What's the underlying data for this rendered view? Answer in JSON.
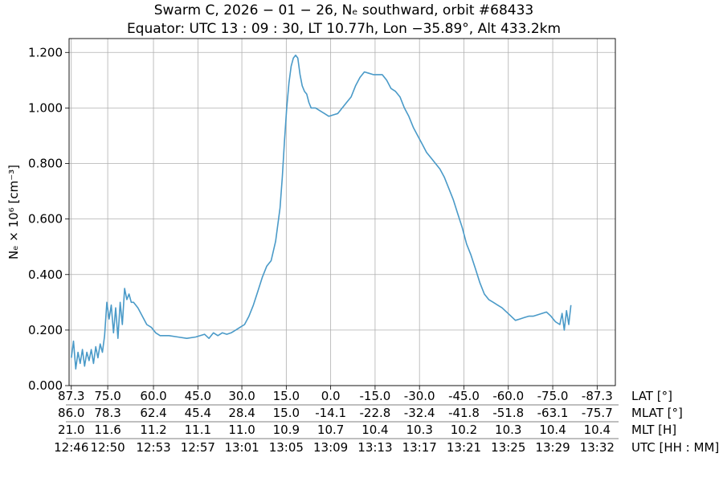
{
  "chart_data": {
    "type": "line",
    "title_lines": [
      "Swarm C,  2026 − 01 − 26,  Nₑ southward,  orbit #68433",
      "Equator:  UTC 13 : 09 : 30,  LT 10.77h,  Lon  −35.89°,  Alt 433.2km"
    ],
    "ylabel": "Nₑ × 10⁶ [cm⁻³]",
    "ylim": [
      0,
      1.25
    ],
    "xlim": [
      -0.05,
      12.25
    ],
    "yticks": [
      "0.000",
      "0.200",
      "0.400",
      "0.600",
      "0.800",
      "1.000",
      "1.200"
    ],
    "grid": true,
    "line_color": "#4a9ac8",
    "x_label_rows": [
      {
        "name": "LAT [°]",
        "labels": [
          "87.3",
          "75.0",
          "60.0",
          "45.0",
          "30.0",
          "15.0",
          "0.0",
          "-15.0",
          "-30.0",
          "-45.0",
          "-60.0",
          "-75.0",
          "-87.3"
        ]
      },
      {
        "name": "MLAT [°]",
        "labels": [
          "86.0",
          "78.3",
          "62.4",
          "45.4",
          "28.4",
          "15.0",
          "-14.1",
          "-22.8",
          "-32.4",
          "-41.8",
          "-51.8",
          "-63.1",
          "-75.7"
        ]
      },
      {
        "name": "MLT [H]",
        "labels": [
          "21.0",
          "11.6",
          "11.2",
          "11.1",
          "11.0",
          "10.9",
          "10.7",
          "10.4",
          "10.3",
          "10.2",
          "10.3",
          "10.4",
          "10.4"
        ]
      },
      {
        "name": "UTC [HH : MM]",
        "labels": [
          "12:46",
          "12:50",
          "12:53",
          "12:57",
          "13:01",
          "13:05",
          "13:09",
          "13:13",
          "13:17",
          "13:21",
          "13:25",
          "13:29",
          "13:32"
        ]
      }
    ],
    "x_tick_positions": [
      0,
      0.82,
      1.85,
      2.85,
      3.84,
      4.84,
      5.84,
      6.84,
      7.84,
      8.84,
      9.84,
      10.84,
      11.84
    ],
    "series": [
      {
        "points": [
          [
            0.0,
            0.1
          ],
          [
            0.05,
            0.16
          ],
          [
            0.1,
            0.06
          ],
          [
            0.15,
            0.12
          ],
          [
            0.2,
            0.08
          ],
          [
            0.25,
            0.13
          ],
          [
            0.3,
            0.07
          ],
          [
            0.35,
            0.12
          ],
          [
            0.4,
            0.09
          ],
          [
            0.45,
            0.13
          ],
          [
            0.5,
            0.08
          ],
          [
            0.55,
            0.14
          ],
          [
            0.6,
            0.1
          ],
          [
            0.65,
            0.15
          ],
          [
            0.7,
            0.12
          ],
          [
            0.75,
            0.18
          ],
          [
            0.8,
            0.3
          ],
          [
            0.85,
            0.24
          ],
          [
            0.9,
            0.29
          ],
          [
            0.95,
            0.19
          ],
          [
            1.0,
            0.28
          ],
          [
            1.05,
            0.17
          ],
          [
            1.1,
            0.3
          ],
          [
            1.15,
            0.22
          ],
          [
            1.2,
            0.35
          ],
          [
            1.25,
            0.31
          ],
          [
            1.3,
            0.33
          ],
          [
            1.35,
            0.3
          ],
          [
            1.4,
            0.3
          ],
          [
            1.5,
            0.28
          ],
          [
            1.6,
            0.25
          ],
          [
            1.7,
            0.22
          ],
          [
            1.8,
            0.21
          ],
          [
            1.9,
            0.19
          ],
          [
            2.0,
            0.18
          ],
          [
            2.2,
            0.18
          ],
          [
            2.4,
            0.175
          ],
          [
            2.6,
            0.17
          ],
          [
            2.8,
            0.175
          ],
          [
            3.0,
            0.185
          ],
          [
            3.1,
            0.17
          ],
          [
            3.2,
            0.19
          ],
          [
            3.3,
            0.18
          ],
          [
            3.4,
            0.19
          ],
          [
            3.5,
            0.185
          ],
          [
            3.6,
            0.19
          ],
          [
            3.7,
            0.2
          ],
          [
            3.8,
            0.21
          ],
          [
            3.9,
            0.22
          ],
          [
            4.0,
            0.25
          ],
          [
            4.1,
            0.29
          ],
          [
            4.2,
            0.34
          ],
          [
            4.3,
            0.39
          ],
          [
            4.4,
            0.43
          ],
          [
            4.5,
            0.45
          ],
          [
            4.6,
            0.52
          ],
          [
            4.7,
            0.64
          ],
          [
            4.75,
            0.75
          ],
          [
            4.8,
            0.88
          ],
          [
            4.85,
            1.0
          ],
          [
            4.9,
            1.09
          ],
          [
            4.95,
            1.15
          ],
          [
            5.0,
            1.18
          ],
          [
            5.05,
            1.19
          ],
          [
            5.1,
            1.18
          ],
          [
            5.15,
            1.12
          ],
          [
            5.2,
            1.08
          ],
          [
            5.25,
            1.06
          ],
          [
            5.3,
            1.05
          ],
          [
            5.35,
            1.02
          ],
          [
            5.4,
            1.0
          ],
          [
            5.5,
            1.0
          ],
          [
            5.6,
            0.99
          ],
          [
            5.7,
            0.98
          ],
          [
            5.8,
            0.97
          ],
          [
            5.9,
            0.975
          ],
          [
            6.0,
            0.98
          ],
          [
            6.1,
            1.0
          ],
          [
            6.2,
            1.02
          ],
          [
            6.3,
            1.04
          ],
          [
            6.4,
            1.08
          ],
          [
            6.5,
            1.11
          ],
          [
            6.6,
            1.13
          ],
          [
            6.7,
            1.125
          ],
          [
            6.8,
            1.12
          ],
          [
            6.9,
            1.12
          ],
          [
            7.0,
            1.12
          ],
          [
            7.1,
            1.1
          ],
          [
            7.2,
            1.07
          ],
          [
            7.3,
            1.06
          ],
          [
            7.4,
            1.04
          ],
          [
            7.5,
            1.0
          ],
          [
            7.6,
            0.97
          ],
          [
            7.7,
            0.93
          ],
          [
            7.8,
            0.9
          ],
          [
            7.9,
            0.87
          ],
          [
            8.0,
            0.84
          ],
          [
            8.1,
            0.82
          ],
          [
            8.2,
            0.8
          ],
          [
            8.3,
            0.78
          ],
          [
            8.4,
            0.75
          ],
          [
            8.5,
            0.71
          ],
          [
            8.6,
            0.67
          ],
          [
            8.7,
            0.62
          ],
          [
            8.8,
            0.57
          ],
          [
            8.9,
            0.51
          ],
          [
            9.0,
            0.47
          ],
          [
            9.1,
            0.42
          ],
          [
            9.2,
            0.37
          ],
          [
            9.3,
            0.33
          ],
          [
            9.4,
            0.31
          ],
          [
            9.5,
            0.3
          ],
          [
            9.6,
            0.29
          ],
          [
            9.7,
            0.28
          ],
          [
            9.8,
            0.265
          ],
          [
            9.9,
            0.25
          ],
          [
            10.0,
            0.235
          ],
          [
            10.1,
            0.24
          ],
          [
            10.2,
            0.245
          ],
          [
            10.3,
            0.25
          ],
          [
            10.4,
            0.25
          ],
          [
            10.5,
            0.255
          ],
          [
            10.6,
            0.26
          ],
          [
            10.7,
            0.265
          ],
          [
            10.8,
            0.25
          ],
          [
            10.9,
            0.23
          ],
          [
            11.0,
            0.22
          ],
          [
            11.05,
            0.26
          ],
          [
            11.1,
            0.2
          ],
          [
            11.15,
            0.27
          ],
          [
            11.2,
            0.22
          ],
          [
            11.25,
            0.29
          ]
        ]
      }
    ]
  }
}
